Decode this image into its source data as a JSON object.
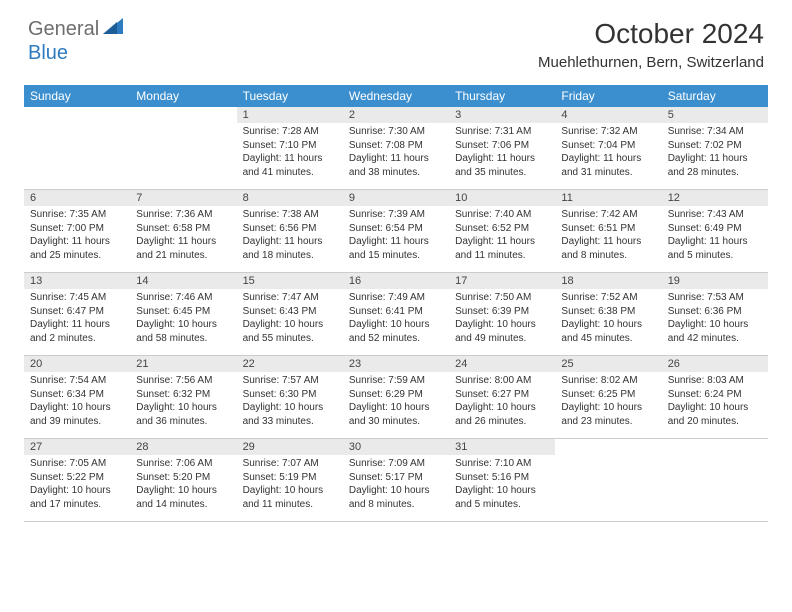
{
  "brand": {
    "text_gray": "General",
    "text_blue": "Blue"
  },
  "title": "October 2024",
  "location": "Muehlethurnen, Bern, Switzerland",
  "colors": {
    "header_bg": "#3c8fcf",
    "header_text": "#ffffff",
    "daynum_bg": "#eaeaea",
    "border": "#cccccc",
    "logo_gray": "#6e6e6e",
    "logo_blue": "#2f7bbf",
    "body_text": "#333333"
  },
  "day_names": [
    "Sunday",
    "Monday",
    "Tuesday",
    "Wednesday",
    "Thursday",
    "Friday",
    "Saturday"
  ],
  "weeks": [
    [
      {
        "n": "",
        "sr": "",
        "ss": "",
        "dl": ""
      },
      {
        "n": "",
        "sr": "",
        "ss": "",
        "dl": ""
      },
      {
        "n": "1",
        "sr": "Sunrise: 7:28 AM",
        "ss": "Sunset: 7:10 PM",
        "dl": "Daylight: 11 hours and 41 minutes."
      },
      {
        "n": "2",
        "sr": "Sunrise: 7:30 AM",
        "ss": "Sunset: 7:08 PM",
        "dl": "Daylight: 11 hours and 38 minutes."
      },
      {
        "n": "3",
        "sr": "Sunrise: 7:31 AM",
        "ss": "Sunset: 7:06 PM",
        "dl": "Daylight: 11 hours and 35 minutes."
      },
      {
        "n": "4",
        "sr": "Sunrise: 7:32 AM",
        "ss": "Sunset: 7:04 PM",
        "dl": "Daylight: 11 hours and 31 minutes."
      },
      {
        "n": "5",
        "sr": "Sunrise: 7:34 AM",
        "ss": "Sunset: 7:02 PM",
        "dl": "Daylight: 11 hours and 28 minutes."
      }
    ],
    [
      {
        "n": "6",
        "sr": "Sunrise: 7:35 AM",
        "ss": "Sunset: 7:00 PM",
        "dl": "Daylight: 11 hours and 25 minutes."
      },
      {
        "n": "7",
        "sr": "Sunrise: 7:36 AM",
        "ss": "Sunset: 6:58 PM",
        "dl": "Daylight: 11 hours and 21 minutes."
      },
      {
        "n": "8",
        "sr": "Sunrise: 7:38 AM",
        "ss": "Sunset: 6:56 PM",
        "dl": "Daylight: 11 hours and 18 minutes."
      },
      {
        "n": "9",
        "sr": "Sunrise: 7:39 AM",
        "ss": "Sunset: 6:54 PM",
        "dl": "Daylight: 11 hours and 15 minutes."
      },
      {
        "n": "10",
        "sr": "Sunrise: 7:40 AM",
        "ss": "Sunset: 6:52 PM",
        "dl": "Daylight: 11 hours and 11 minutes."
      },
      {
        "n": "11",
        "sr": "Sunrise: 7:42 AM",
        "ss": "Sunset: 6:51 PM",
        "dl": "Daylight: 11 hours and 8 minutes."
      },
      {
        "n": "12",
        "sr": "Sunrise: 7:43 AM",
        "ss": "Sunset: 6:49 PM",
        "dl": "Daylight: 11 hours and 5 minutes."
      }
    ],
    [
      {
        "n": "13",
        "sr": "Sunrise: 7:45 AM",
        "ss": "Sunset: 6:47 PM",
        "dl": "Daylight: 11 hours and 2 minutes."
      },
      {
        "n": "14",
        "sr": "Sunrise: 7:46 AM",
        "ss": "Sunset: 6:45 PM",
        "dl": "Daylight: 10 hours and 58 minutes."
      },
      {
        "n": "15",
        "sr": "Sunrise: 7:47 AM",
        "ss": "Sunset: 6:43 PM",
        "dl": "Daylight: 10 hours and 55 minutes."
      },
      {
        "n": "16",
        "sr": "Sunrise: 7:49 AM",
        "ss": "Sunset: 6:41 PM",
        "dl": "Daylight: 10 hours and 52 minutes."
      },
      {
        "n": "17",
        "sr": "Sunrise: 7:50 AM",
        "ss": "Sunset: 6:39 PM",
        "dl": "Daylight: 10 hours and 49 minutes."
      },
      {
        "n": "18",
        "sr": "Sunrise: 7:52 AM",
        "ss": "Sunset: 6:38 PM",
        "dl": "Daylight: 10 hours and 45 minutes."
      },
      {
        "n": "19",
        "sr": "Sunrise: 7:53 AM",
        "ss": "Sunset: 6:36 PM",
        "dl": "Daylight: 10 hours and 42 minutes."
      }
    ],
    [
      {
        "n": "20",
        "sr": "Sunrise: 7:54 AM",
        "ss": "Sunset: 6:34 PM",
        "dl": "Daylight: 10 hours and 39 minutes."
      },
      {
        "n": "21",
        "sr": "Sunrise: 7:56 AM",
        "ss": "Sunset: 6:32 PM",
        "dl": "Daylight: 10 hours and 36 minutes."
      },
      {
        "n": "22",
        "sr": "Sunrise: 7:57 AM",
        "ss": "Sunset: 6:30 PM",
        "dl": "Daylight: 10 hours and 33 minutes."
      },
      {
        "n": "23",
        "sr": "Sunrise: 7:59 AM",
        "ss": "Sunset: 6:29 PM",
        "dl": "Daylight: 10 hours and 30 minutes."
      },
      {
        "n": "24",
        "sr": "Sunrise: 8:00 AM",
        "ss": "Sunset: 6:27 PM",
        "dl": "Daylight: 10 hours and 26 minutes."
      },
      {
        "n": "25",
        "sr": "Sunrise: 8:02 AM",
        "ss": "Sunset: 6:25 PM",
        "dl": "Daylight: 10 hours and 23 minutes."
      },
      {
        "n": "26",
        "sr": "Sunrise: 8:03 AM",
        "ss": "Sunset: 6:24 PM",
        "dl": "Daylight: 10 hours and 20 minutes."
      }
    ],
    [
      {
        "n": "27",
        "sr": "Sunrise: 7:05 AM",
        "ss": "Sunset: 5:22 PM",
        "dl": "Daylight: 10 hours and 17 minutes."
      },
      {
        "n": "28",
        "sr": "Sunrise: 7:06 AM",
        "ss": "Sunset: 5:20 PM",
        "dl": "Daylight: 10 hours and 14 minutes."
      },
      {
        "n": "29",
        "sr": "Sunrise: 7:07 AM",
        "ss": "Sunset: 5:19 PM",
        "dl": "Daylight: 10 hours and 11 minutes."
      },
      {
        "n": "30",
        "sr": "Sunrise: 7:09 AM",
        "ss": "Sunset: 5:17 PM",
        "dl": "Daylight: 10 hours and 8 minutes."
      },
      {
        "n": "31",
        "sr": "Sunrise: 7:10 AM",
        "ss": "Sunset: 5:16 PM",
        "dl": "Daylight: 10 hours and 5 minutes."
      },
      {
        "n": "",
        "sr": "",
        "ss": "",
        "dl": ""
      },
      {
        "n": "",
        "sr": "",
        "ss": "",
        "dl": ""
      }
    ]
  ]
}
